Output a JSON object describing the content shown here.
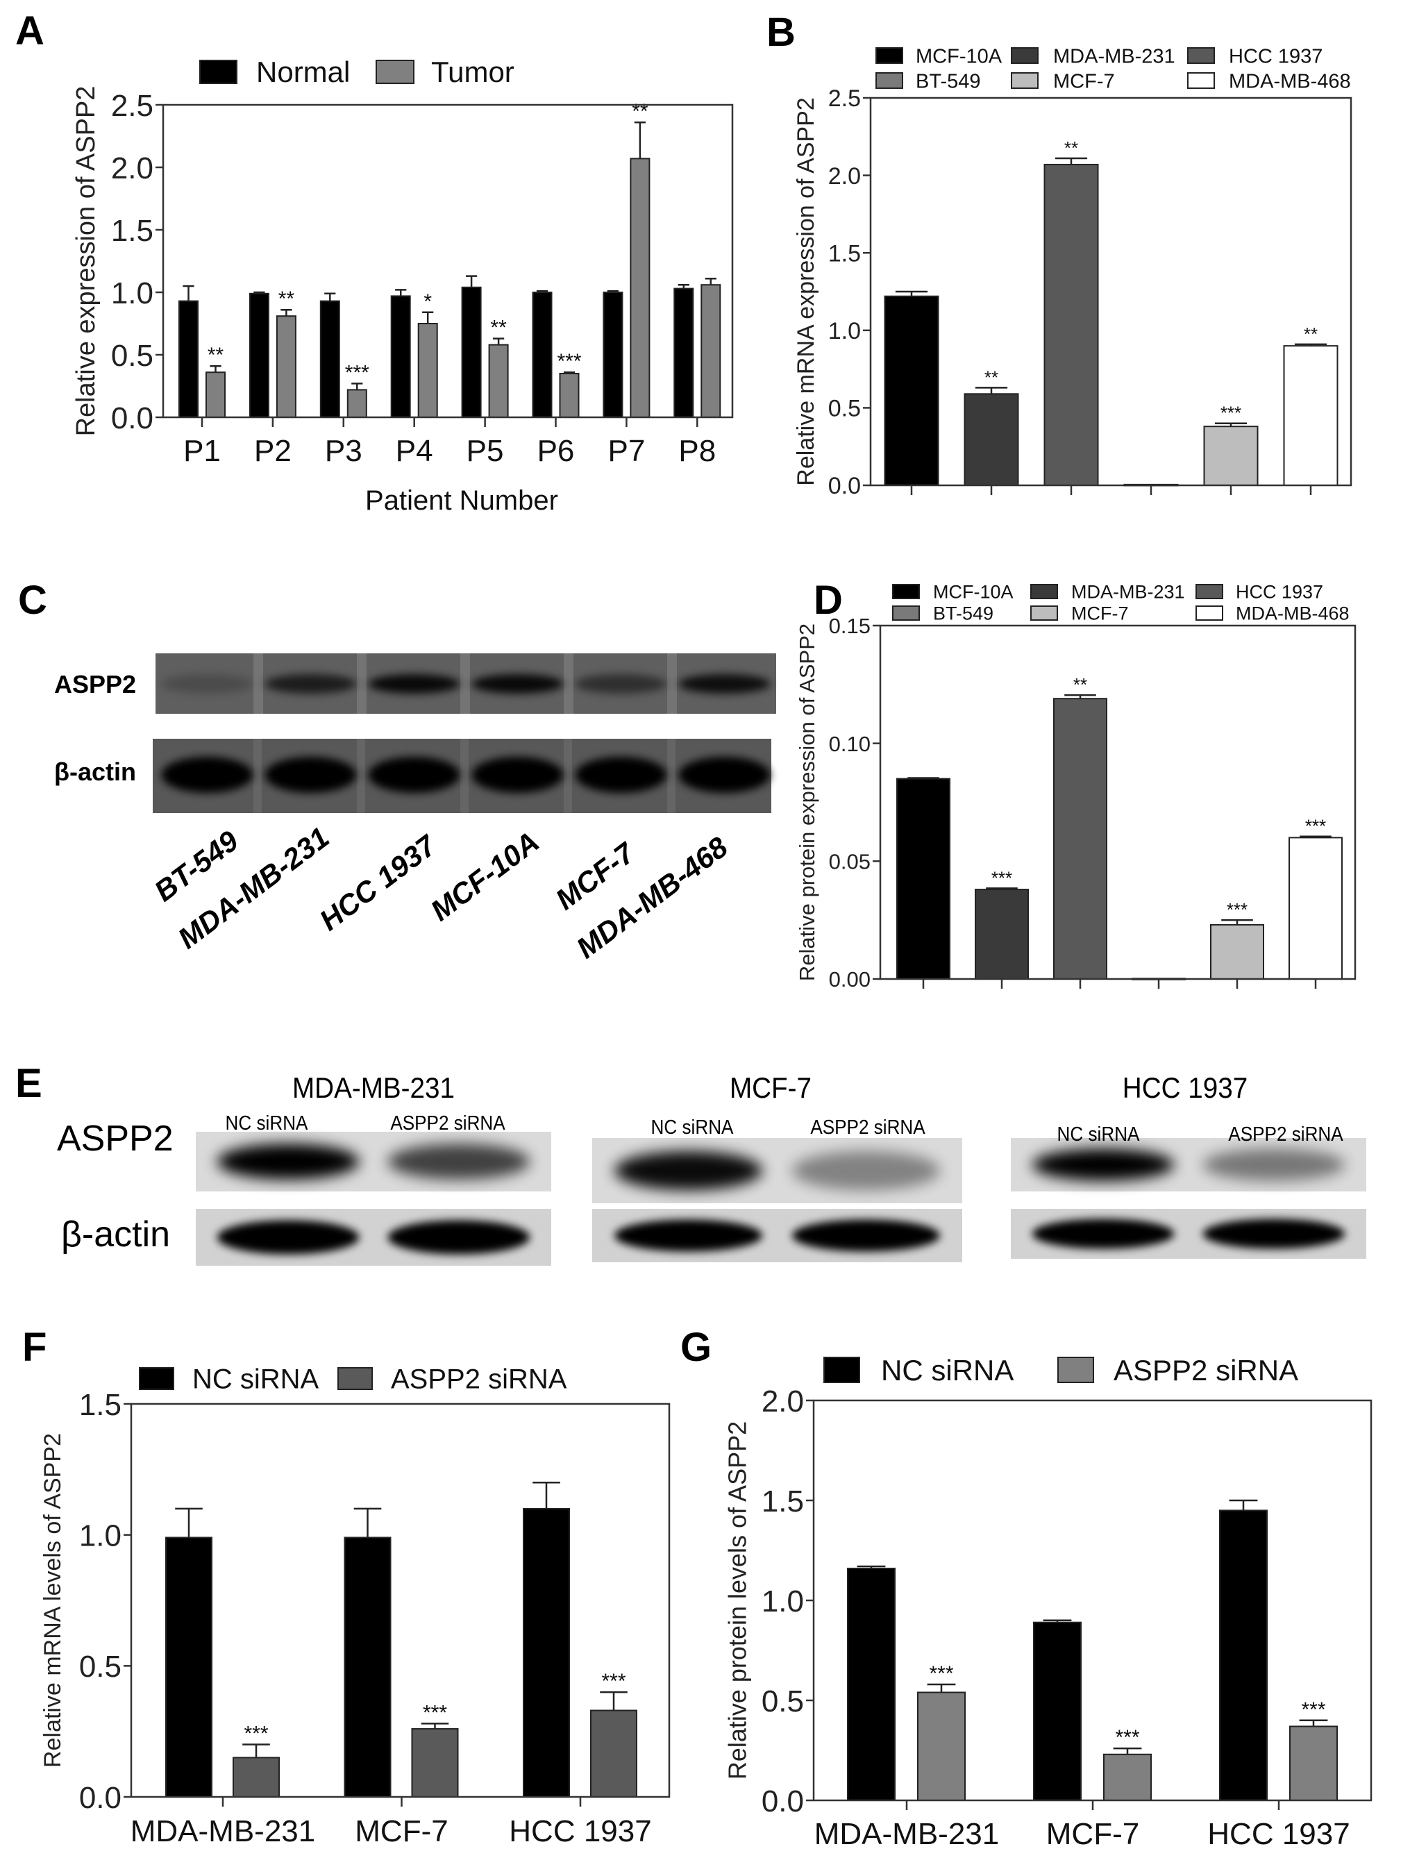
{
  "panels": {
    "A": "A",
    "B": "B",
    "C": "C",
    "D": "D",
    "E": "E",
    "F": "F",
    "G": "G"
  },
  "blot_c": {
    "rows": [
      "ASPP2",
      "β-actin"
    ],
    "lanes": [
      "BT-549",
      "MDA-MB-231",
      "HCC 1937",
      "MCF-10A",
      "MCF-7",
      "MDA-MB-468"
    ],
    "aspp2_band_intensity": [
      0.2,
      0.7,
      0.9,
      0.9,
      0.5,
      0.85
    ],
    "actin_band_intensity": [
      1,
      1,
      1,
      1,
      1,
      1
    ]
  },
  "blot_e": {
    "rows": [
      "ASPP2",
      "β-actin"
    ],
    "groups": [
      {
        "title": "MDA-MB-231",
        "lanes": [
          "NC siRNA",
          "ASPP2 siRNA"
        ],
        "aspp2_band_intensity": [
          1.0,
          0.7
        ],
        "actin_band_intensity": [
          1,
          1
        ]
      },
      {
        "title": "MCF-7",
        "lanes": [
          "NC siRNA",
          "ASPP2 siRNA"
        ],
        "aspp2_band_intensity": [
          0.95,
          0.4
        ],
        "actin_band_intensity": [
          1,
          1
        ]
      },
      {
        "title": "HCC 1937",
        "lanes": [
          "NC siRNA",
          "ASPP2 siRNA"
        ],
        "aspp2_band_intensity": [
          1.0,
          0.45
        ],
        "actin_band_intensity": [
          1,
          1
        ]
      }
    ]
  },
  "chart_data": [
    {
      "panel": "A",
      "type": "bar",
      "ylabel": "Relative expression of ASPP2",
      "xlabel": "Patient Number",
      "ylim": [
        0,
        2.5
      ],
      "yticks": [
        0,
        0.5,
        1.0,
        1.5,
        2.0,
        2.5
      ],
      "ytick_labels": [
        "0.0",
        "0.5",
        "1.0",
        "1.5",
        "2.0",
        "2.5"
      ],
      "categories": [
        "P1",
        "P2",
        "P3",
        "P4",
        "P5",
        "P6",
        "P7",
        "P8"
      ],
      "legend": "top",
      "series": [
        {
          "name": "Normal",
          "color": "#000000",
          "values": [
            0.93,
            0.99,
            0.93,
            0.97,
            1.04,
            1.0,
            1.0,
            1.03
          ],
          "errors": [
            0.12,
            0.01,
            0.06,
            0.05,
            0.09,
            0.01,
            0.01,
            0.03
          ],
          "significance": [
            "",
            "",
            "",
            "",
            "",
            "",
            "",
            ""
          ]
        },
        {
          "name": "Tumor",
          "color": "#808080",
          "values": [
            0.36,
            0.81,
            0.22,
            0.75,
            0.58,
            0.35,
            2.07,
            1.06
          ],
          "errors": [
            0.05,
            0.05,
            0.05,
            0.09,
            0.05,
            0.01,
            0.29,
            0.05
          ],
          "significance": [
            "**",
            "**",
            "***",
            "*",
            "**",
            "***",
            "**",
            ""
          ]
        }
      ]
    },
    {
      "panel": "B",
      "type": "bar",
      "ylabel": "Relative mRNA expression of ASPP2",
      "ylim": [
        0,
        2.5
      ],
      "yticks": [
        0,
        0.5,
        1.0,
        1.5,
        2.0,
        2.5
      ],
      "ytick_labels": [
        "0.0",
        "0.5",
        "1.0",
        "1.5",
        "2.0",
        "2.5"
      ],
      "legend": "top",
      "bars": [
        {
          "name": "MCF-10A",
          "color": "#000000",
          "value": 1.22,
          "error": 0.03,
          "significance": ""
        },
        {
          "name": "MDA-MB-231",
          "color": "#3a3a3a",
          "value": 0.59,
          "error": 0.04,
          "significance": "**"
        },
        {
          "name": "HCC 1937",
          "color": "#595959",
          "value": 2.07,
          "error": 0.04,
          "significance": "**"
        },
        {
          "name": "BT-549",
          "color": "#7a7a7a",
          "value": 0.005,
          "error": 0,
          "significance": ""
        },
        {
          "name": "MCF-7",
          "color": "#bdbdbd",
          "value": 0.38,
          "error": 0.02,
          "significance": "***"
        },
        {
          "name": "MDA-MB-468",
          "color": "#ffffff",
          "value": 0.9,
          "error": 0.01,
          "significance": "**"
        }
      ]
    },
    {
      "panel": "D",
      "type": "bar",
      "ylabel": "Relative protein expression of ASPP2",
      "ylim": [
        0,
        0.15
      ],
      "yticks": [
        0,
        0.05,
        0.1,
        0.15
      ],
      "ytick_labels": [
        "0.00",
        "0.05",
        "0.10",
        "0.15"
      ],
      "legend": "top",
      "bars": [
        {
          "name": "MCF-10A",
          "color": "#000000",
          "value": 0.085,
          "error": 0.0003,
          "significance": ""
        },
        {
          "name": "MDA-MB-231",
          "color": "#3a3a3a",
          "value": 0.038,
          "error": 0.0005,
          "significance": "***"
        },
        {
          "name": "HCC 1937",
          "color": "#595959",
          "value": 0.119,
          "error": 0.0015,
          "significance": "**"
        },
        {
          "name": "BT-549",
          "color": "#7a7a7a",
          "value": 0.0002,
          "error": 0,
          "significance": ""
        },
        {
          "name": "MCF-7",
          "color": "#bdbdbd",
          "value": 0.023,
          "error": 0.002,
          "significance": "***"
        },
        {
          "name": "MDA-MB-468",
          "color": "#ffffff",
          "value": 0.06,
          "error": 0.0005,
          "significance": "***"
        }
      ]
    },
    {
      "panel": "F",
      "type": "bar",
      "ylabel": "Relative mRNA levels of ASPP2",
      "ylim": [
        0,
        1.5
      ],
      "yticks": [
        0,
        0.5,
        1.0,
        1.5
      ],
      "ytick_labels": [
        "0.0",
        "0.5",
        "1.0",
        "1.5"
      ],
      "categories": [
        "MDA-MB-231",
        "MCF-7",
        "HCC 1937"
      ],
      "legend": "top",
      "series": [
        {
          "name": "NC siRNA",
          "color": "#000000",
          "values": [
            0.99,
            0.99,
            1.1
          ],
          "errors": [
            0.11,
            0.11,
            0.1
          ],
          "significance": [
            "",
            "",
            ""
          ]
        },
        {
          "name": "ASPP2 siRNA",
          "color": "#5a5a5a",
          "values": [
            0.15,
            0.26,
            0.33
          ],
          "errors": [
            0.05,
            0.02,
            0.07
          ],
          "significance": [
            "***",
            "***",
            "***"
          ]
        }
      ]
    },
    {
      "panel": "G",
      "type": "bar",
      "ylabel": "Relative protein levels of ASPP2",
      "ylim": [
        0,
        2.0
      ],
      "yticks": [
        0,
        0.5,
        1.0,
        1.5,
        2.0
      ],
      "ytick_labels": [
        "0.0",
        "0.5",
        "1.0",
        "1.5",
        "2.0"
      ],
      "categories": [
        "MDA-MB-231",
        "MCF-7",
        "HCC 1937"
      ],
      "legend": "top",
      "series": [
        {
          "name": "NC siRNA",
          "color": "#000000",
          "values": [
            1.16,
            0.89,
            1.45
          ],
          "errors": [
            0.01,
            0.01,
            0.05
          ],
          "significance": [
            "",
            "",
            ""
          ]
        },
        {
          "name": "ASPP2 siRNA",
          "color": "#808080",
          "values": [
            0.54,
            0.23,
            0.37
          ],
          "errors": [
            0.04,
            0.03,
            0.03
          ],
          "significance": [
            "***",
            "***",
            "***"
          ]
        }
      ]
    }
  ]
}
